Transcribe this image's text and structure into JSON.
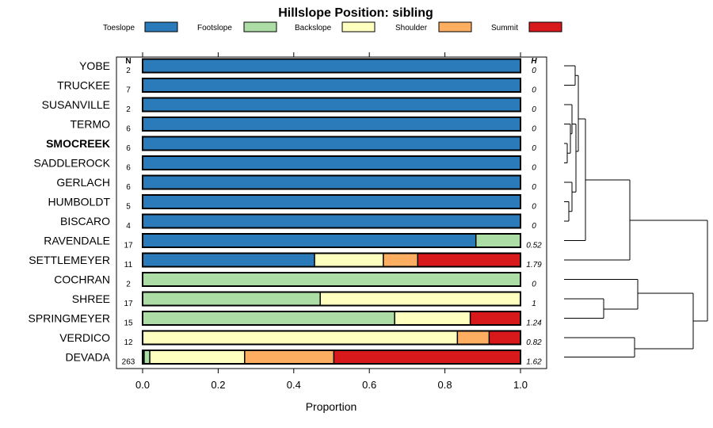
{
  "chart_data": {
    "type": "bar",
    "stacked": true,
    "orientation": "horizontal",
    "title": "Hillslope Position: sibling",
    "xlabel": "Proportion",
    "xlim": [
      0,
      1
    ],
    "xticks": [
      "0.0",
      "0.2",
      "0.4",
      "0.6",
      "0.8",
      "1.0"
    ],
    "n_header": "N",
    "h_header": "H",
    "highlight": "SMOCREEK",
    "legend": [
      {
        "name": "Toeslope",
        "color": "#2b7bba"
      },
      {
        "name": "Footslope",
        "color": "#abdda4"
      },
      {
        "name": "Backslope",
        "color": "#ffffbf"
      },
      {
        "name": "Shoulder",
        "color": "#fdae61"
      },
      {
        "name": "Summit",
        "color": "#d7191c"
      }
    ],
    "categories": [
      "YOBE",
      "TRUCKEE",
      "SUSANVILLE",
      "TERMO",
      "SMOCREEK",
      "SADDLEROCK",
      "GERLACH",
      "HUMBOLDT",
      "BISCARO",
      "RAVENDALE",
      "SETTLEMEYER",
      "COCHRAN",
      "SHREE",
      "SPRINGMEYER",
      "VERDICO",
      "DEVADA"
    ],
    "n": [
      "2",
      "7",
      "2",
      "6",
      "6",
      "6",
      "6",
      "5",
      "4",
      "17",
      "11",
      "2",
      "17",
      "15",
      "12",
      "263"
    ],
    "h": [
      "0",
      "0",
      "0",
      "0",
      "0",
      "0",
      "0",
      "0",
      "0",
      "0.52",
      "1.79",
      "0",
      "1",
      "1.24",
      "0.82",
      "1.62"
    ],
    "series": [
      {
        "name": "Toeslope",
        "values": [
          1,
          1,
          1,
          1,
          1,
          1,
          1,
          1,
          1,
          0.882,
          0.455,
          0,
          0,
          0,
          0,
          0.004
        ]
      },
      {
        "name": "Footslope",
        "values": [
          0,
          0,
          0,
          0,
          0,
          0,
          0,
          0,
          0,
          0.118,
          0,
          1,
          0.47,
          0.667,
          0,
          0.015
        ]
      },
      {
        "name": "Backslope",
        "values": [
          0,
          0,
          0,
          0,
          0,
          0,
          0,
          0,
          0,
          0,
          0.182,
          0,
          0.53,
          0.2,
          0.833,
          0.251
        ]
      },
      {
        "name": "Shoulder",
        "values": [
          0,
          0,
          0,
          0,
          0,
          0,
          0,
          0,
          0,
          0,
          0.091,
          0,
          0,
          0,
          0.084,
          0.236
        ]
      },
      {
        "name": "Summit",
        "values": [
          0,
          0,
          0,
          0,
          0,
          0,
          0,
          0,
          0,
          0,
          0.272,
          0,
          0,
          0.133,
          0.083,
          0.494
        ]
      }
    ]
  }
}
